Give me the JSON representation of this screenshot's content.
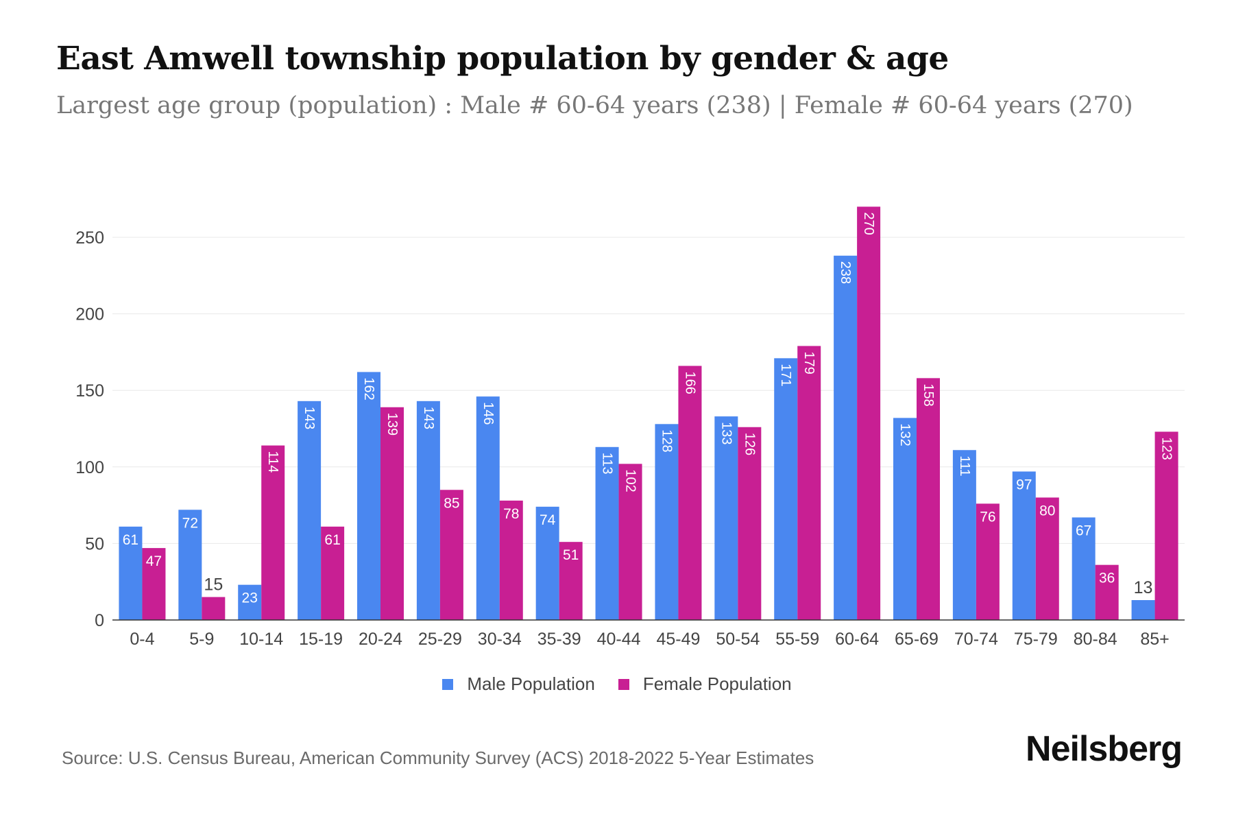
{
  "header": {
    "title": "East Amwell township population by gender & age",
    "subtitle": "Largest age group (population) : Male # 60-64 years (238) | Female # 60-64 years (270)"
  },
  "footer": {
    "source": "Source: U.S. Census Bureau, American Community Survey (ACS) 2018-2022 5-Year Estimates",
    "brand": "Neilsberg"
  },
  "colors": {
    "male": "#4a87f0",
    "female": "#c81f93",
    "grid": "#e8e8e8",
    "axis": "#333333",
    "tick_text": "#444444"
  },
  "chart_data": {
    "type": "bar",
    "title": "",
    "xlabel": "",
    "ylabel": "",
    "ylim": [
      0,
      270
    ],
    "yticks": [
      0,
      50,
      100,
      150,
      200,
      250
    ],
    "grid": true,
    "legend_position": "bottom-center",
    "categories": [
      "0-4",
      "5-9",
      "10-14",
      "15-19",
      "20-24",
      "25-29",
      "30-34",
      "35-39",
      "40-44",
      "45-49",
      "50-54",
      "55-59",
      "60-64",
      "65-69",
      "70-74",
      "75-79",
      "80-84",
      "85+"
    ],
    "series": [
      {
        "name": "Male Population",
        "color": "#4a87f0",
        "values": [
          61,
          72,
          23,
          143,
          162,
          143,
          146,
          74,
          113,
          128,
          133,
          171,
          238,
          132,
          111,
          97,
          67,
          13
        ]
      },
      {
        "name": "Female Population",
        "color": "#c81f93",
        "values": [
          47,
          15,
          114,
          61,
          139,
          85,
          78,
          51,
          102,
          166,
          126,
          179,
          270,
          158,
          76,
          80,
          36,
          123
        ]
      }
    ]
  }
}
